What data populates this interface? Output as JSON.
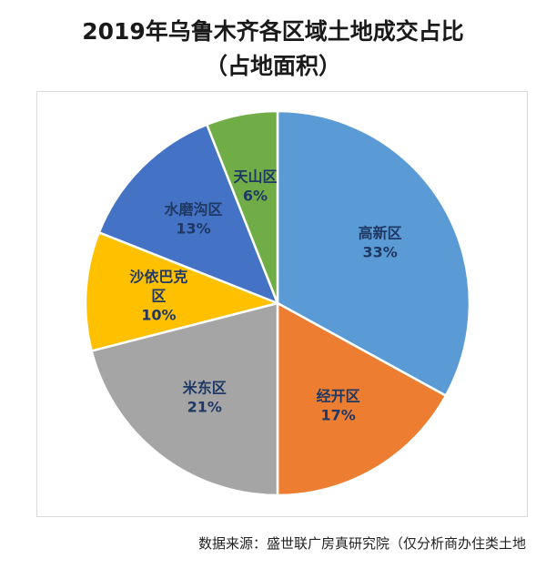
{
  "title": {
    "line1": "2019年乌鲁木齐各区域土地成交占比",
    "line2": "（占地面积）"
  },
  "source": "数据来源：盛世联广房真研究院（仅分析商办住类土地",
  "chart_data": {
    "type": "pie",
    "title": "2019年乌鲁木齐各区域土地成交占比（占地面积）",
    "slices": [
      {
        "name": "高新区",
        "label_lines": [
          "高新区"
        ],
        "value": 33,
        "value_label": "33%",
        "color": "#5B9BD5",
        "text_color": "#1F3864"
      },
      {
        "name": "经开区",
        "label_lines": [
          "经开区"
        ],
        "value": 17,
        "value_label": "17%",
        "color": "#ED7D31",
        "text_color": "#1F3864"
      },
      {
        "name": "米东区",
        "label_lines": [
          "米东区"
        ],
        "value": 21,
        "value_label": "21%",
        "color": "#A5A5A5",
        "text_color": "#1F3864"
      },
      {
        "name": "沙依巴克区",
        "label_lines": [
          "沙依巴克",
          "区"
        ],
        "value": 10,
        "value_label": "10%",
        "color": "#FFC000",
        "text_color": "#1F3864"
      },
      {
        "name": "水磨沟区",
        "label_lines": [
          "水磨沟区"
        ],
        "value": 13,
        "value_label": "13%",
        "color": "#4472C4",
        "text_color": "#1F3864"
      },
      {
        "name": "天山区",
        "label_lines": [
          "天山区"
        ],
        "value": 6,
        "value_label": "6%",
        "color": "#70AD47",
        "text_color": "#1F3864"
      }
    ],
    "start": "top",
    "direction": "clockwise",
    "legend": "none"
  }
}
